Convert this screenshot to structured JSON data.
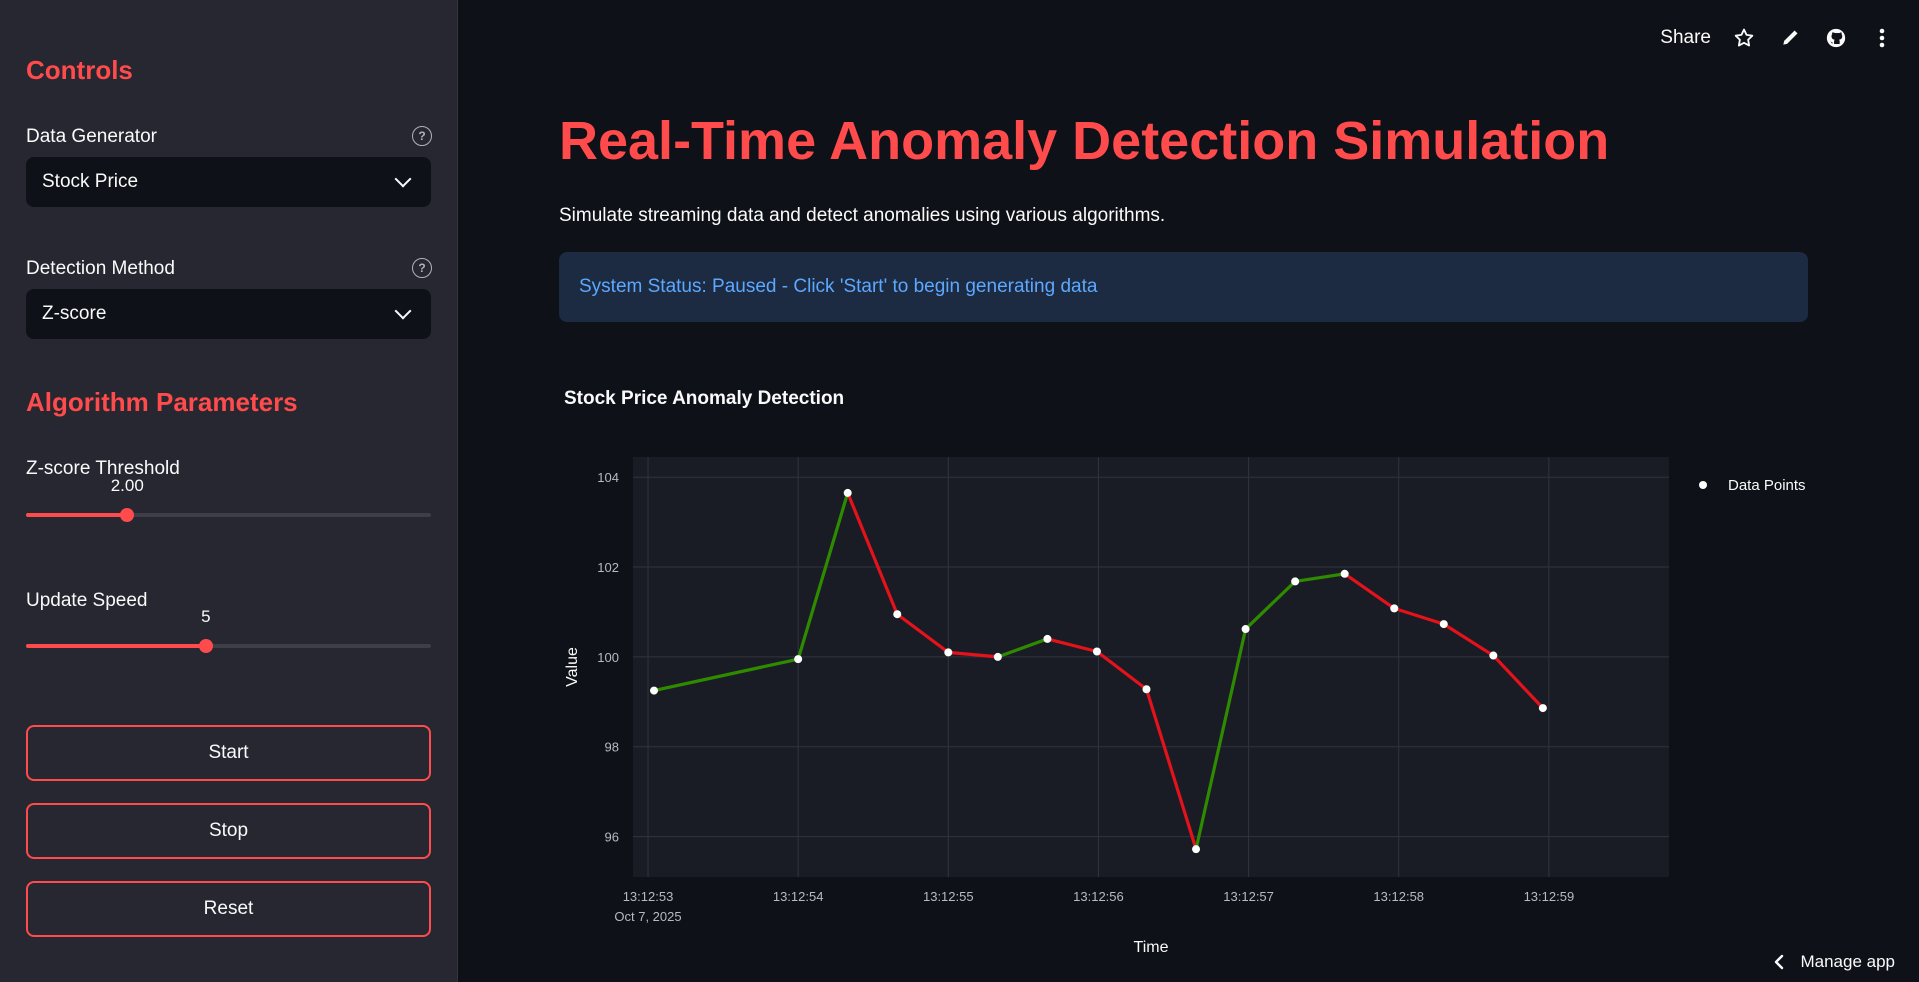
{
  "sidebar": {
    "controls_heading": "Controls",
    "data_generator": {
      "label": "Data Generator",
      "value": "Stock Price"
    },
    "detection_method": {
      "label": "Detection Method",
      "value": "Z-score"
    },
    "params_heading": "Algorithm Parameters",
    "zscore": {
      "label": "Z-score Threshold",
      "value_text": "2.00",
      "fraction": 0.25
    },
    "speed": {
      "label": "Update Speed",
      "value_text": "5",
      "fraction": 0.444
    },
    "buttons": {
      "start": "Start",
      "stop": "Stop",
      "reset": "Reset"
    },
    "help_glyph": "?"
  },
  "toolbar": {
    "share": "Share",
    "icons": [
      "star-icon",
      "pencil-icon",
      "github-icon",
      "kebab-menu-icon"
    ]
  },
  "main": {
    "title": "Real-Time Anomaly Detection Simulation",
    "subtitle": "Simulate streaming data and detect anomalies using various algorithms.",
    "status": "System Status: Paused - Click 'Start' to begin generating data"
  },
  "manage_app": "Manage app",
  "colors": {
    "accent": "#ff4b4b",
    "normal_segment": "#2e8b00",
    "anomaly_segment": "#e3121b",
    "status_text": "#5da8ff"
  },
  "chart_data": {
    "type": "line",
    "title": "Stock Price Anomaly Detection",
    "xlabel": "Time",
    "ylabel": "Value",
    "ylim": [
      95.1,
      104.45
    ],
    "xlim": [
      52.9,
      59.8
    ],
    "y_ticks": [
      96,
      98,
      100,
      102,
      104
    ],
    "x_ticks": [
      {
        "v": 53,
        "label": "13:12:53",
        "sub": "Oct 7, 2025"
      },
      {
        "v": 54,
        "label": "13:12:54"
      },
      {
        "v": 55,
        "label": "13:12:55"
      },
      {
        "v": 56,
        "label": "13:12:56"
      },
      {
        "v": 57,
        "label": "13:12:57"
      },
      {
        "v": 58,
        "label": "13:12:58"
      },
      {
        "v": 59,
        "label": "13:12:59"
      }
    ],
    "grid": true,
    "legend": {
      "placement": "top-right",
      "entries": [
        "Data Points"
      ]
    },
    "series": [
      {
        "name": "Data Points",
        "x": [
          53.04,
          54.0,
          54.33,
          54.66,
          55.0,
          55.33,
          55.66,
          55.99,
          56.32,
          56.65,
          56.98,
          57.31,
          57.64,
          57.97,
          58.3,
          58.63,
          58.96
        ],
        "y": [
          99.25,
          99.95,
          103.65,
          100.95,
          100.1,
          100.0,
          100.4,
          100.12,
          99.28,
          95.72,
          100.62,
          101.68,
          101.85,
          101.08,
          100.73,
          100.03,
          98.86
        ],
        "segment_colors": [
          "normal",
          "normal",
          "anomaly",
          "anomaly",
          "anomaly",
          "normal",
          "anomaly",
          "anomaly",
          "anomaly",
          "normal",
          "normal",
          "normal",
          "anomaly",
          "anomaly",
          "anomaly",
          "anomaly"
        ]
      }
    ]
  }
}
